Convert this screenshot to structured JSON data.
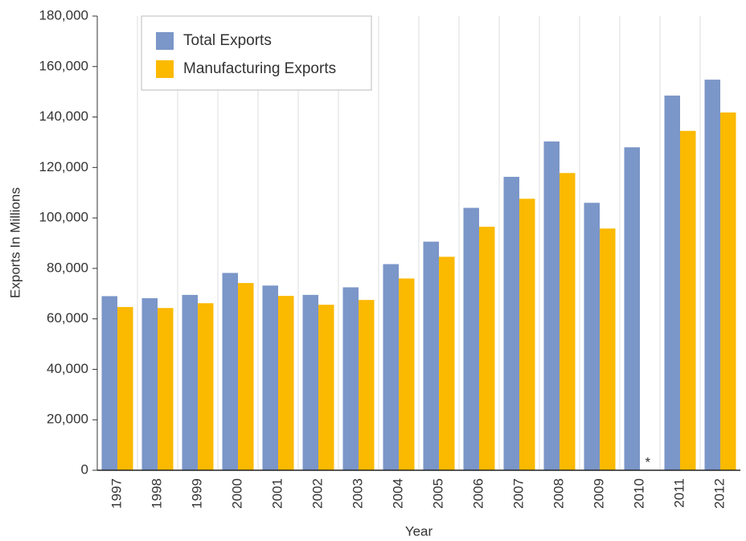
{
  "chart_data": {
    "type": "bar",
    "x_label": "Year",
    "y_label": "Exports In Millions",
    "categories": [
      "1997",
      "1998",
      "1999",
      "2000",
      "2001",
      "2002",
      "2003",
      "2004",
      "2005",
      "2006",
      "2007",
      "2008",
      "2009",
      "2010",
      "2011",
      "2012"
    ],
    "series": [
      {
        "name": "Total Exports",
        "color": "#7b96c8",
        "values": [
          69000,
          68200,
          69500,
          78200,
          73200,
          69500,
          72500,
          81700,
          90600,
          104000,
          116300,
          130300,
          106000,
          128000,
          148500,
          154800
        ]
      },
      {
        "name": "Manufacturing Exports",
        "color": "#fbb900",
        "values": [
          64700,
          64300,
          66200,
          74200,
          69100,
          65600,
          67500,
          76000,
          84600,
          96500,
          107600,
          117800,
          95800,
          null,
          134500,
          141800
        ]
      }
    ],
    "annotation": "*",
    "ylim": [
      0,
      180000
    ],
    "yticks": [
      0,
      {
        "value": 20000,
        "label": "20,000"
      },
      {
        "value": 40000,
        "label": "40,000"
      },
      {
        "value": 60000,
        "label": "60,000"
      },
      {
        "value": 80000,
        "label": "80,000"
      },
      {
        "value": 100000,
        "label": "100,000"
      },
      {
        "value": 120000,
        "label": "120,000"
      },
      {
        "value": 140000,
        "label": "140,000"
      },
      {
        "value": 160000,
        "label": "160,000"
      },
      {
        "value": 180000,
        "label": "180,000"
      }
    ],
    "grid": true,
    "legend": "upper left"
  }
}
